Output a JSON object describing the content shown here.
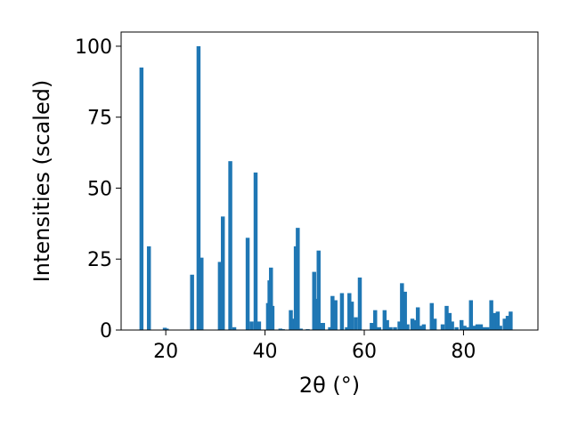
{
  "chart_data": {
    "type": "bar",
    "xlabel": "2θ (°)",
    "ylabel": "Intensities (scaled)",
    "xlim": [
      11,
      95
    ],
    "ylim": [
      0,
      105
    ],
    "xticks": [
      20,
      40,
      60,
      80
    ],
    "yticks": [
      0,
      25,
      50,
      75,
      100
    ],
    "grid": false,
    "bar_color": "#1f77b4",
    "bar_width": 0.8,
    "series": [
      {
        "x": [
          15.1,
          16.6,
          19.8,
          20.2,
          25.3,
          26.6,
          27.2,
          30.9,
          31.5,
          33.0,
          33.8,
          36.5,
          37.3,
          38.1,
          38.8,
          40.6,
          40.9,
          41.2,
          41.5,
          43.1,
          43.6,
          45.2,
          45.7,
          46.2,
          46.6,
          47.2,
          48.6,
          49.9,
          50.3,
          50.8,
          51.2,
          51.7,
          53.1,
          53.6,
          54.2,
          55.5,
          56.5,
          57.0,
          57.5,
          58.3,
          59.1,
          61.5,
          62.2,
          63.0,
          64.1,
          64.6,
          65.3,
          66.2,
          67.1,
          67.6,
          68.2,
          68.7,
          69.7,
          70.2,
          70.8,
          71.3,
          72.0,
          73.6,
          74.2,
          75.8,
          76.6,
          77.2,
          77.7,
          78.6,
          79.6,
          80.2,
          80.9,
          81.5,
          82.3,
          82.8,
          83.5,
          84.1,
          84.8,
          85.6,
          86.2,
          86.9,
          87.4,
          88.3,
          88.9,
          89.5
        ],
        "values": [
          92.5,
          29.5,
          0.8,
          0.5,
          19.5,
          100,
          25.5,
          24,
          40,
          59.5,
          1,
          32.5,
          3,
          55.5,
          3,
          9.5,
          17.5,
          22,
          8.5,
          0.5,
          0.3,
          7,
          4,
          29.5,
          36,
          0.5,
          0.3,
          20.5,
          11,
          28,
          2.5,
          2.5,
          1,
          12,
          10.5,
          13,
          1,
          13,
          10,
          4.5,
          18.5,
          2.5,
          7,
          1,
          7,
          3.5,
          1,
          1,
          3,
          16.5,
          13.5,
          2,
          4,
          3.5,
          8,
          1.5,
          2,
          9.5,
          4,
          2,
          8.5,
          6,
          3,
          1,
          3.5,
          1.5,
          1,
          10.5,
          1.5,
          2,
          2,
          1,
          1,
          10.5,
          6,
          6.5,
          1.5,
          4,
          5,
          6.5
        ]
      }
    ]
  }
}
